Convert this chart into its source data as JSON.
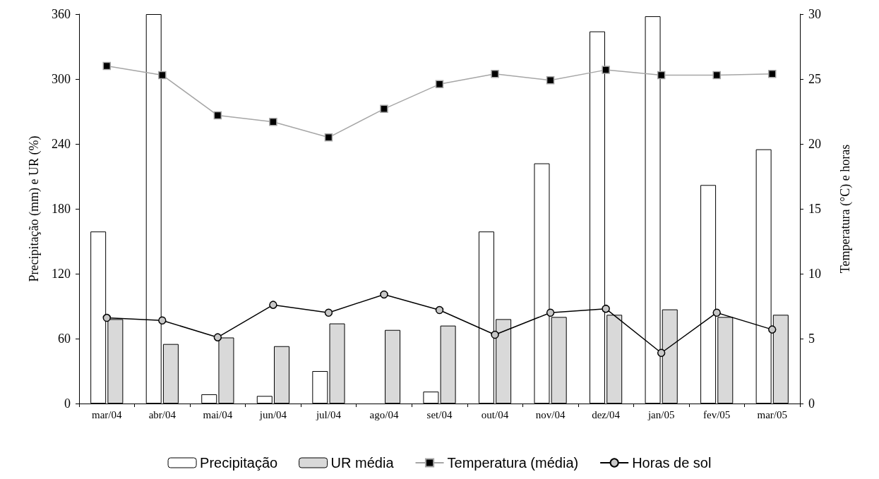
{
  "chart_data": {
    "type": "bar",
    "categories": [
      "mar/04",
      "abr/04",
      "mai/04",
      "jun/04",
      "jul/04",
      "ago/04",
      "set/04",
      "out/04",
      "nov/04",
      "dez/04",
      "jan/05",
      "fev/05",
      "mar/05"
    ],
    "ylabel": "Precipitação (mm) e UR (%)",
    "y2label": "Temperatura (°C) e horas",
    "ylim": [
      0,
      360
    ],
    "yticks": [
      0,
      60,
      120,
      180,
      240,
      300,
      360
    ],
    "y2lim": [
      0,
      30
    ],
    "y2ticks": [
      0,
      5,
      10,
      15,
      20,
      25,
      30
    ],
    "grid": false,
    "legend": "bottom",
    "series": [
      {
        "name": "Precipitação",
        "color": "#ffffff",
        "values": [
          159,
          360,
          8.5,
          7,
          30,
          null,
          11,
          159,
          222,
          344,
          358,
          202,
          235
        ]
      },
      {
        "name": "UR média",
        "color": "#d9d9d9",
        "values": [
          78,
          55,
          61,
          53,
          74,
          68,
          72,
          78,
          80,
          82,
          87,
          80,
          82
        ]
      },
      {
        "name": "Temperatura (média)",
        "type": "line",
        "axis": "y2",
        "color": "#a6a6a6",
        "marker": "square",
        "values": [
          26.0,
          25.3,
          22.2,
          21.7,
          20.5,
          22.7,
          24.6,
          25.4,
          24.9,
          25.7,
          25.3,
          25.3,
          25.4
        ]
      },
      {
        "name": "Horas de sol",
        "type": "line",
        "axis": "y2",
        "color": "#000000",
        "marker": "circle",
        "values": [
          6.6,
          6.4,
          5.1,
          7.6,
          7.0,
          8.4,
          7.2,
          5.3,
          7.0,
          7.3,
          3.9,
          7.0,
          5.7
        ]
      }
    ]
  }
}
